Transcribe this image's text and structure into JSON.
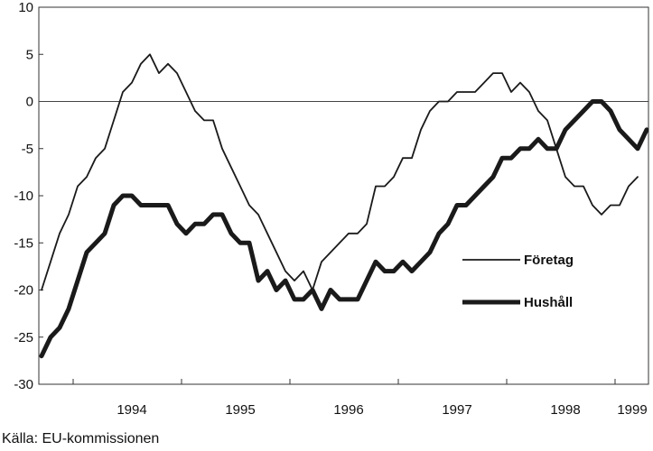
{
  "chart_data": {
    "type": "line",
    "title": "",
    "xlabel": "",
    "ylabel": "",
    "ylim": [
      -30,
      10
    ],
    "yticks": [
      10,
      5,
      0,
      -5,
      -10,
      -15,
      -20,
      -25,
      -30
    ],
    "x_tick_labels": [
      "1994",
      "1995",
      "1996",
      "1997",
      "1998",
      "1999"
    ],
    "x_start": "1993-09",
    "grid": false,
    "zero_line": true,
    "legend_position": "right-middle",
    "series": [
      {
        "name": "Företag",
        "style": "thin",
        "color": "#1a1a1a",
        "values": [
          -20,
          -17,
          -14,
          -12,
          -9,
          -8,
          -6,
          -5,
          -2,
          1,
          2,
          4,
          5,
          3,
          4,
          3,
          1,
          -1,
          -2,
          -2,
          -5,
          -7,
          -9,
          -11,
          -12,
          -14,
          -16,
          -18,
          -19,
          -18,
          -20,
          -17,
          -16,
          -15,
          -14,
          -14,
          -13,
          -9,
          -9,
          -8,
          -6,
          -6,
          -3,
          -1,
          0,
          0,
          1,
          1,
          1,
          2,
          3,
          3,
          1,
          2,
          1,
          -1,
          -2,
          -5,
          -8,
          -9,
          -9,
          -11,
          -12,
          -11,
          -11,
          -9,
          -8
        ]
      },
      {
        "name": "Hushåll",
        "style": "thick",
        "color": "#1a1a1a",
        "values": [
          -27,
          -25,
          -24,
          -22,
          -19,
          -16,
          -15,
          -14,
          -11,
          -10,
          -10,
          -11,
          -11,
          -11,
          -11,
          -13,
          -14,
          -13,
          -13,
          -12,
          -12,
          -14,
          -15,
          -15,
          -19,
          -18,
          -20,
          -19,
          -21,
          -21,
          -20,
          -22,
          -20,
          -21,
          -21,
          -21,
          -19,
          -17,
          -18,
          -18,
          -17,
          -18,
          -17,
          -16,
          -14,
          -13,
          -11,
          -11,
          -10,
          -9,
          -8,
          -6,
          -6,
          -5,
          -5,
          -4,
          -5,
          -5,
          -3,
          -2,
          -1,
          0,
          0,
          -1,
          -3,
          -4,
          -5,
          -3
        ]
      }
    ]
  },
  "source_text": "Källa: EU-kommissionen"
}
